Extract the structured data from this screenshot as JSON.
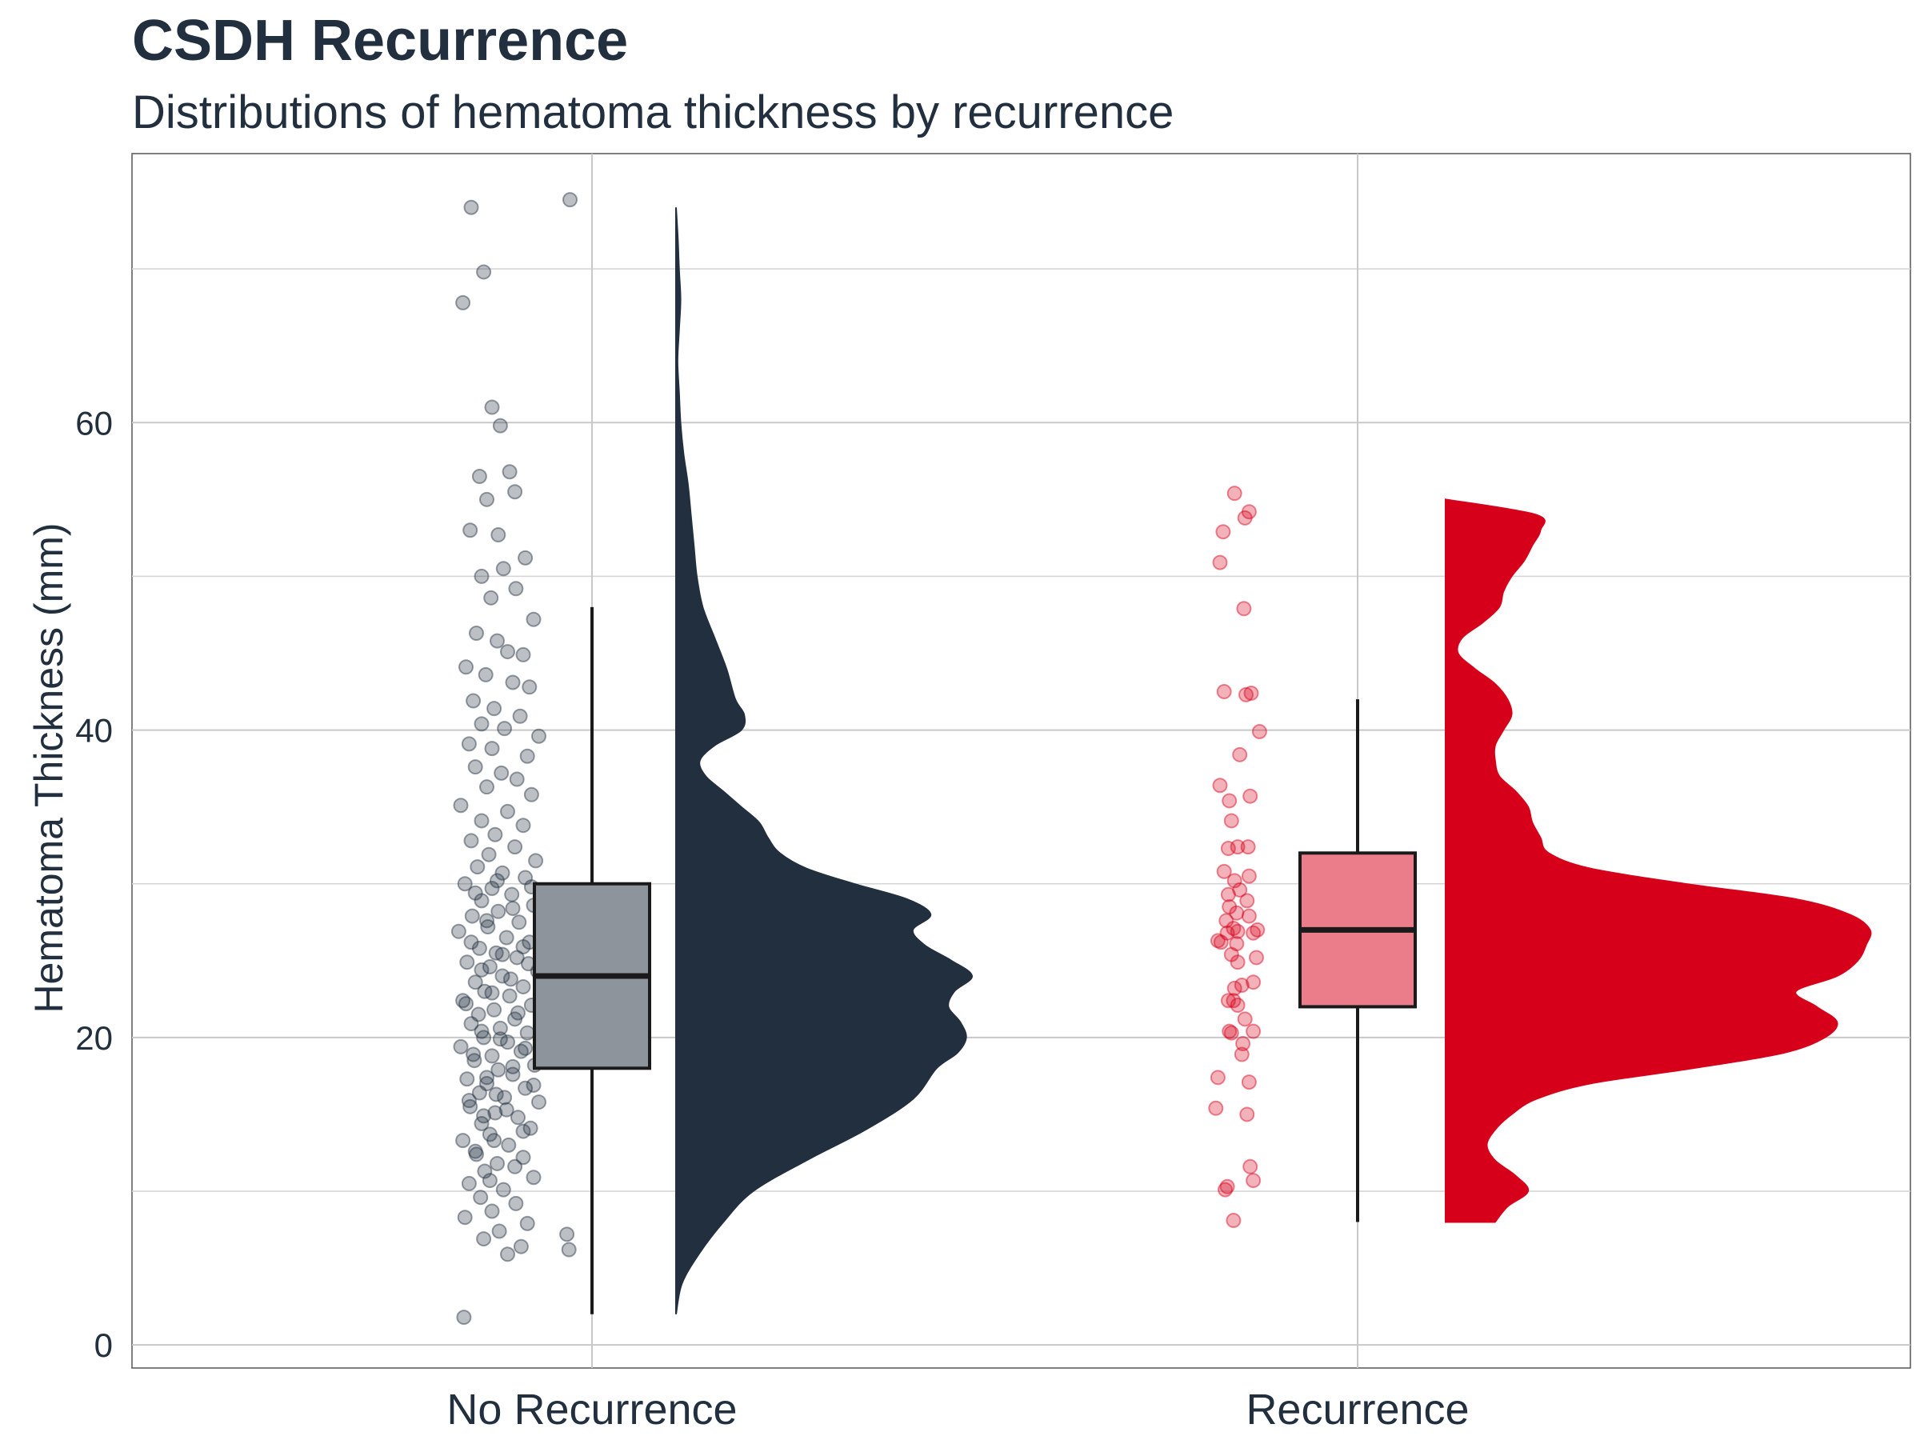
{
  "chart_data": {
    "type": "raincloud",
    "title": "CSDH Recurrence",
    "subtitle": "Distributions of hematoma thickness by recurrence",
    "ylabel": "Hematoma Thickness (mm)",
    "xlabel": "",
    "ylim": [
      -1.5,
      77.5
    ],
    "yticks": [
      0,
      20,
      40,
      60
    ],
    "grid": true,
    "legend": "none",
    "categories": [
      "No Recurrence",
      "Recurrence"
    ],
    "groups": [
      {
        "category": "No Recurrence",
        "color": "#222f3e",
        "box_fill": "#8d949c",
        "point_color": "#222f3e",
        "box": {
          "whisker_low": 2,
          "q1": 18,
          "median": 24,
          "q3": 30,
          "whisker_high": 48
        },
        "density": {
          "y": [
            2,
            4,
            6,
            8,
            10,
            12,
            14,
            16,
            18,
            19,
            20,
            21,
            22,
            23,
            24,
            25,
            26,
            27,
            28,
            29,
            30,
            31,
            32,
            33,
            34,
            35,
            36,
            37,
            38,
            39,
            40,
            41,
            42,
            44,
            46,
            48,
            50,
            52,
            54,
            56,
            58,
            60,
            62,
            64,
            66,
            68,
            70,
            72,
            74
          ],
          "d": [
            0.0,
            0.02,
            0.08,
            0.16,
            0.26,
            0.44,
            0.64,
            0.8,
            0.88,
            0.95,
            0.98,
            0.96,
            0.92,
            0.94,
            1.0,
            0.93,
            0.84,
            0.8,
            0.86,
            0.78,
            0.6,
            0.44,
            0.35,
            0.31,
            0.28,
            0.22,
            0.16,
            0.1,
            0.08,
            0.13,
            0.22,
            0.23,
            0.2,
            0.17,
            0.13,
            0.09,
            0.07,
            0.06,
            0.05,
            0.04,
            0.025,
            0.015,
            0.01,
            0.005,
            0.01,
            0.015,
            0.01,
            0.006,
            0.0
          ]
        },
        "points": [
          [
            -0.7,
            74
          ],
          [
            0.25,
            74.5
          ],
          [
            -0.58,
            69.8
          ],
          [
            -0.78,
            67.8
          ],
          [
            -0.5,
            61
          ],
          [
            -0.42,
            59.8
          ],
          [
            -0.62,
            56.5
          ],
          [
            -0.55,
            55
          ],
          [
            -0.33,
            56.8
          ],
          [
            -0.71,
            53
          ],
          [
            -0.28,
            55.5
          ],
          [
            -0.44,
            52.7
          ],
          [
            -0.39,
            50.5
          ],
          [
            -0.6,
            50
          ],
          [
            -0.18,
            51.2
          ],
          [
            -0.27,
            49.2
          ],
          [
            -0.51,
            48.6
          ],
          [
            -0.1,
            47.2
          ],
          [
            -0.65,
            46.3
          ],
          [
            -0.45,
            45.8
          ],
          [
            -0.35,
            45.1
          ],
          [
            -0.2,
            44.9
          ],
          [
            -0.75,
            44.1
          ],
          [
            -0.56,
            43.6
          ],
          [
            -0.3,
            43.1
          ],
          [
            -0.14,
            42.8
          ],
          [
            -0.68,
            41.9
          ],
          [
            -0.48,
            41.4
          ],
          [
            -0.23,
            40.9
          ],
          [
            -0.6,
            40.4
          ],
          [
            -0.38,
            40.1
          ],
          [
            -0.05,
            39.6
          ],
          [
            -0.72,
            39.1
          ],
          [
            -0.5,
            38.8
          ],
          [
            -0.16,
            38.3
          ],
          [
            -0.66,
            37.6
          ],
          [
            -0.41,
            37.2
          ],
          [
            -0.26,
            36.8
          ],
          [
            -0.55,
            36.3
          ],
          [
            -0.12,
            35.8
          ],
          [
            -0.8,
            35.1
          ],
          [
            -0.35,
            34.7
          ],
          [
            -0.6,
            34.1
          ],
          [
            -0.2,
            33.8
          ],
          [
            -0.47,
            33.2
          ],
          [
            -0.7,
            32.8
          ],
          [
            -0.28,
            32.4
          ],
          [
            -0.53,
            31.9
          ],
          [
            -0.08,
            31.5
          ],
          [
            -0.64,
            31.1
          ],
          [
            -0.4,
            30.7
          ],
          [
            -0.18,
            30.4
          ],
          [
            -0.76,
            30.0
          ],
          [
            -0.5,
            29.7
          ],
          [
            -0.31,
            29.3
          ],
          [
            -0.6,
            28.9
          ],
          [
            -0.1,
            28.6
          ],
          [
            -0.44,
            28.2
          ],
          [
            -0.69,
            27.9
          ],
          [
            -0.24,
            27.5
          ],
          [
            -0.54,
            27.2
          ],
          [
            -0.82,
            26.9
          ],
          [
            -0.36,
            26.5
          ],
          [
            -0.14,
            26.2
          ],
          [
            -0.62,
            25.8
          ],
          [
            -0.46,
            25.5
          ],
          [
            -0.26,
            25.2
          ],
          [
            -0.74,
            24.9
          ],
          [
            -0.52,
            24.6
          ],
          [
            -0.06,
            24.3
          ],
          [
            -0.4,
            24.0
          ],
          [
            -0.66,
            23.6
          ],
          [
            -0.2,
            23.3
          ],
          [
            -0.57,
            23.0
          ],
          [
            -0.33,
            22.7
          ],
          [
            -0.78,
            22.4
          ],
          [
            -0.12,
            22.1
          ],
          [
            -0.48,
            21.8
          ],
          [
            -0.63,
            21.5
          ],
          [
            -0.28,
            21.2
          ],
          [
            -0.7,
            20.9
          ],
          [
            -0.42,
            20.6
          ],
          [
            -0.16,
            20.3
          ],
          [
            -0.58,
            20.0
          ],
          [
            -0.35,
            19.7
          ],
          [
            -0.8,
            19.4
          ],
          [
            -0.22,
            19.1
          ],
          [
            -0.5,
            18.8
          ],
          [
            -0.67,
            18.5
          ],
          [
            -0.09,
            18.2
          ],
          [
            -0.44,
            17.9
          ],
          [
            -0.3,
            17.6
          ],
          [
            -0.74,
            17.3
          ],
          [
            -0.55,
            17.0
          ],
          [
            -0.18,
            16.7
          ],
          [
            -0.62,
            16.4
          ],
          [
            -0.38,
            16.1
          ],
          [
            -0.05,
            15.8
          ],
          [
            -0.71,
            15.5
          ],
          [
            -0.47,
            15.1
          ],
          [
            -0.25,
            14.8
          ],
          [
            -0.6,
            14.4
          ],
          [
            -0.13,
            14.1
          ],
          [
            -0.52,
            13.7
          ],
          [
            -0.78,
            13.3
          ],
          [
            -0.34,
            13.0
          ],
          [
            -0.66,
            12.6
          ],
          [
            -0.2,
            12.2
          ],
          [
            -0.45,
            11.8
          ],
          [
            -0.57,
            11.3
          ],
          [
            -0.1,
            10.9
          ],
          [
            -0.72,
            10.5
          ],
          [
            -0.39,
            10.1
          ],
          [
            -0.61,
            9.6
          ],
          [
            -0.27,
            9.2
          ],
          [
            -0.5,
            8.7
          ],
          [
            -0.76,
            8.3
          ],
          [
            -0.16,
            7.9
          ],
          [
            -0.43,
            7.4
          ],
          [
            -0.58,
            6.9
          ],
          [
            -0.22,
            6.4
          ],
          [
            -0.35,
            5.9
          ],
          [
            0.22,
            7.2
          ],
          [
            0.24,
            6.2
          ],
          [
            -0.77,
            1.8
          ],
          [
            -0.66,
            29.4
          ],
          [
            -0.45,
            30.2
          ],
          [
            -0.3,
            28.4
          ],
          [
            -0.12,
            29.8
          ],
          [
            -0.55,
            27.6
          ],
          [
            -0.7,
            26.2
          ],
          [
            -0.2,
            25.9
          ],
          [
            -0.4,
            25.4
          ],
          [
            -0.6,
            24.4
          ],
          [
            -0.15,
            24.8
          ],
          [
            -0.32,
            23.8
          ],
          [
            -0.5,
            22.9
          ],
          [
            -0.75,
            22.2
          ],
          [
            -0.25,
            21.6
          ],
          [
            -0.6,
            20.4
          ],
          [
            -0.42,
            19.9
          ],
          [
            -0.18,
            19.3
          ],
          [
            -0.68,
            18.9
          ],
          [
            -0.3,
            18.1
          ],
          [
            -0.55,
            17.4
          ],
          [
            -0.1,
            16.9
          ],
          [
            -0.46,
            16.3
          ],
          [
            -0.72,
            15.9
          ],
          [
            -0.36,
            15.3
          ],
          [
            -0.58,
            14.9
          ],
          [
            -0.2,
            13.9
          ],
          [
            -0.48,
            13.3
          ],
          [
            -0.65,
            12.4
          ],
          [
            -0.28,
            11.6
          ],
          [
            -0.52,
            10.7
          ]
        ]
      },
      {
        "category": "Recurrence",
        "color": "#d7001a",
        "box_fill": "#eb7c89",
        "point_color": "#d7001a",
        "box": {
          "whisker_low": 8,
          "q1": 22,
          "median": 27,
          "q3": 32,
          "whisker_high": 42
        },
        "density": {
          "y": [
            8,
            9,
            10,
            11,
            12,
            13,
            14,
            15,
            16,
            17,
            18,
            19,
            20,
            21,
            22,
            23,
            24,
            25,
            26,
            27,
            28,
            29,
            30,
            31,
            32,
            33,
            34,
            35,
            36,
            37,
            38,
            39,
            40,
            41,
            42,
            43,
            44,
            45,
            46,
            47,
            48,
            49,
            50,
            51,
            52,
            53,
            54,
            55
          ],
          "d": [
            0.12,
            0.15,
            0.2,
            0.17,
            0.12,
            0.1,
            0.12,
            0.16,
            0.22,
            0.35,
            0.6,
            0.82,
            0.92,
            0.95,
            0.9,
            0.85,
            0.95,
            1.0,
            1.02,
            1.03,
            0.98,
            0.85,
            0.58,
            0.35,
            0.25,
            0.23,
            0.21,
            0.2,
            0.17,
            0.13,
            0.12,
            0.12,
            0.14,
            0.16,
            0.15,
            0.12,
            0.07,
            0.03,
            0.04,
            0.09,
            0.13,
            0.14,
            0.16,
            0.19,
            0.21,
            0.23,
            0.22,
            0.0
          ]
        },
        "points": [
          [
            -0.26,
            55.4
          ],
          [
            -0.16,
            53.8
          ],
          [
            -0.12,
            54.2
          ],
          [
            -0.37,
            52.9
          ],
          [
            -0.4,
            50.9
          ],
          [
            -0.17,
            47.9
          ],
          [
            -0.36,
            42.5
          ],
          [
            -0.15,
            42.3
          ],
          [
            -0.1,
            42.4
          ],
          [
            -0.02,
            39.9
          ],
          [
            -0.21,
            38.4
          ],
          [
            -0.4,
            36.4
          ],
          [
            -0.11,
            35.7
          ],
          [
            -0.31,
            35.4
          ],
          [
            -0.29,
            34.1
          ],
          [
            -0.32,
            32.3
          ],
          [
            -0.13,
            32.4
          ],
          [
            -0.23,
            32.4
          ],
          [
            -0.36,
            30.8
          ],
          [
            -0.12,
            30.5
          ],
          [
            -0.26,
            30.2
          ],
          [
            -0.21,
            29.6
          ],
          [
            -0.32,
            29.3
          ],
          [
            -0.14,
            28.9
          ],
          [
            -0.31,
            28.5
          ],
          [
            -0.24,
            28.1
          ],
          [
            -0.12,
            27.9
          ],
          [
            -0.34,
            27.6
          ],
          [
            -0.27,
            27.1
          ],
          [
            -0.23,
            26.9
          ],
          [
            -0.04,
            27.0
          ],
          [
            -0.08,
            26.8
          ],
          [
            -0.33,
            26.8
          ],
          [
            -0.42,
            26.3
          ],
          [
            -0.24,
            26.1
          ],
          [
            -0.39,
            26.2
          ],
          [
            -0.29,
            25.4
          ],
          [
            -0.05,
            25.2
          ],
          [
            -0.23,
            24.9
          ],
          [
            -0.08,
            23.6
          ],
          [
            -0.19,
            23.4
          ],
          [
            -0.26,
            23.2
          ],
          [
            -0.32,
            22.4
          ],
          [
            -0.23,
            22.1
          ],
          [
            -0.27,
            22.4
          ],
          [
            -0.16,
            21.2
          ],
          [
            -0.31,
            20.4
          ],
          [
            -0.08,
            20.4
          ],
          [
            -0.18,
            19.6
          ],
          [
            -0.19,
            18.9
          ],
          [
            -0.29,
            20.3
          ],
          [
            -0.42,
            17.4
          ],
          [
            -0.12,
            17.1
          ],
          [
            -0.44,
            15.4
          ],
          [
            -0.14,
            15.0
          ],
          [
            -0.11,
            11.6
          ],
          [
            -0.08,
            10.7
          ],
          [
            -0.33,
            10.3
          ],
          [
            -0.35,
            10.1
          ],
          [
            -0.27,
            8.1
          ]
        ]
      }
    ]
  }
}
